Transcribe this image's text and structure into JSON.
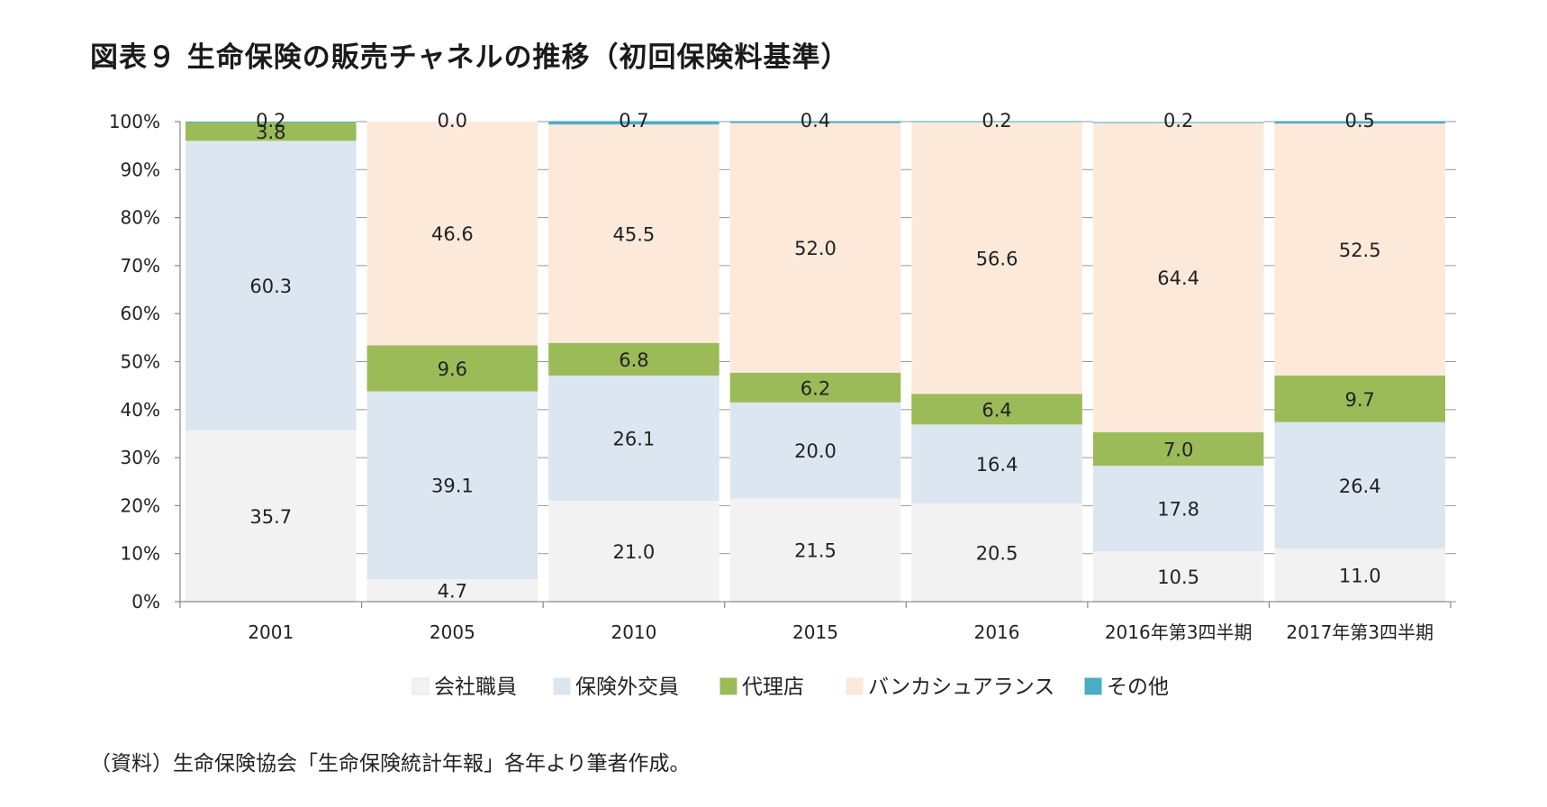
{
  "title": "図表９ 生命保険の販売チャネルの推移（初回保険料基準）",
  "source": "（資料）生命保険協会「生命保険統計年報」各年より筆者作成。",
  "chart_data": {
    "type": "bar",
    "stacked": true,
    "percent_stacked": true,
    "categories": [
      "2001",
      "2005",
      "2010",
      "2015",
      "2016",
      "2016年第3四半期",
      "2017年第3四半期"
    ],
    "ylim": [
      0,
      100
    ],
    "yticks": [
      "0%",
      "10%",
      "20%",
      "30%",
      "40%",
      "50%",
      "60%",
      "70%",
      "80%",
      "90%",
      "100%"
    ],
    "legend_position": "bottom",
    "series": [
      {
        "name": "会社職員",
        "color": "#f2f2f2",
        "values": [
          35.7,
          4.7,
          21.0,
          21.5,
          20.5,
          10.5,
          11.0
        ],
        "labels": [
          "35.7",
          "4.7",
          "21.0",
          "21.5",
          "20.5",
          "10.5",
          "11.0"
        ]
      },
      {
        "name": "保険外交員",
        "color": "#dce6f1",
        "values": [
          60.3,
          39.1,
          26.1,
          20.0,
          16.4,
          17.8,
          26.4
        ],
        "labels": [
          "60.3",
          "39.1",
          "26.1",
          "20.0",
          "16.4",
          "17.8",
          "26.4"
        ]
      },
      {
        "name": "代理店",
        "color": "#9bbb59",
        "values": [
          3.8,
          9.6,
          6.8,
          6.2,
          6.4,
          7.0,
          9.7
        ],
        "labels": [
          "3.8",
          "9.6",
          "6.8",
          "6.2",
          "6.4",
          "7.0",
          "9.7"
        ]
      },
      {
        "name": "バンカシュアランス",
        "color": "#fde9d9",
        "values": [
          0.0,
          46.6,
          45.5,
          52.0,
          56.6,
          64.4,
          52.5
        ],
        "labels": [
          "",
          "46.6",
          "45.5",
          "52.0",
          "56.6",
          "64.4",
          "52.5"
        ]
      },
      {
        "name": "その他",
        "color": "#4bacc6",
        "values": [
          0.2,
          0.0,
          0.7,
          0.4,
          0.2,
          0.2,
          0.5
        ],
        "labels": [
          "0.2",
          "0.0",
          "0.7",
          "0.4",
          "0.2",
          "0.2",
          "0.5"
        ]
      }
    ]
  }
}
